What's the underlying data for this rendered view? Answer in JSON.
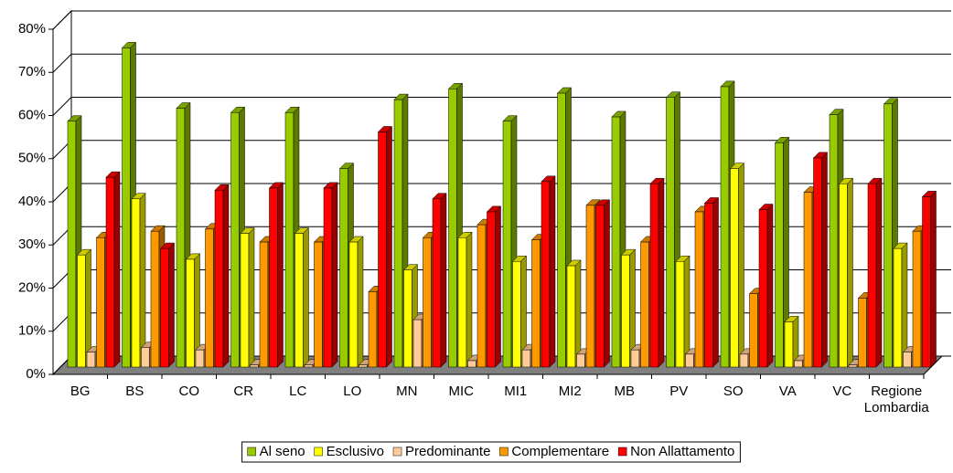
{
  "chart_data": {
    "type": "bar3d",
    "categories": [
      "BG",
      "BS",
      "CO",
      "CR",
      "LC",
      "LO",
      "MN",
      "MIC",
      "MI1",
      "MI2",
      "MB",
      "PV",
      "SO",
      "VA",
      "VC",
      "Regione Lombardia"
    ],
    "series": [
      {
        "name": "Al seno",
        "color": "#99cc00",
        "values": [
          57,
          74,
          60,
          59,
          59,
          46,
          62,
          64.5,
          57,
          63.5,
          58,
          62.5,
          65,
          52,
          58.5,
          61
        ]
      },
      {
        "name": "Esclusivo",
        "color": "#ffff00",
        "values": [
          26,
          39,
          25,
          31,
          31,
          29,
          22.5,
          30,
          24.5,
          23.5,
          26,
          24.5,
          46,
          10.5,
          42.5,
          27.5
        ]
      },
      {
        "name": "Predominante",
        "color": "#ffcc99",
        "values": [
          3.5,
          4.5,
          4,
          0.5,
          0.5,
          0.5,
          11,
          1.5,
          4,
          3,
          4,
          3,
          3,
          1.5,
          0.5,
          3.5
        ]
      },
      {
        "name": "Complementare",
        "color": "#ff9900",
        "values": [
          30,
          31.5,
          32,
          29,
          29,
          17.5,
          30,
          33,
          29.5,
          37.5,
          29,
          36,
          17,
          40.5,
          16,
          31.5
        ]
      },
      {
        "name": "Non Allattamento",
        "color": "#ff0000",
        "values": [
          44,
          27.5,
          41,
          41.5,
          41.5,
          54.5,
          39,
          36,
          43,
          37.5,
          42.5,
          38,
          36.5,
          48.5,
          42.5,
          39.5
        ]
      }
    ],
    "ylim": [
      0,
      80
    ],
    "yticks": [
      {
        "value": 0,
        "label": "0%"
      },
      {
        "value": 10,
        "label": "10%"
      },
      {
        "value": 20,
        "label": "20%"
      },
      {
        "value": 30,
        "label": "30%"
      },
      {
        "value": 40,
        "label": "40%"
      },
      {
        "value": 50,
        "label": "50%"
      },
      {
        "value": 60,
        "label": "60%"
      },
      {
        "value": 70,
        "label": "70%"
      },
      {
        "value": 80,
        "label": "80%"
      }
    ],
    "grid": true,
    "legend": "bottom"
  }
}
